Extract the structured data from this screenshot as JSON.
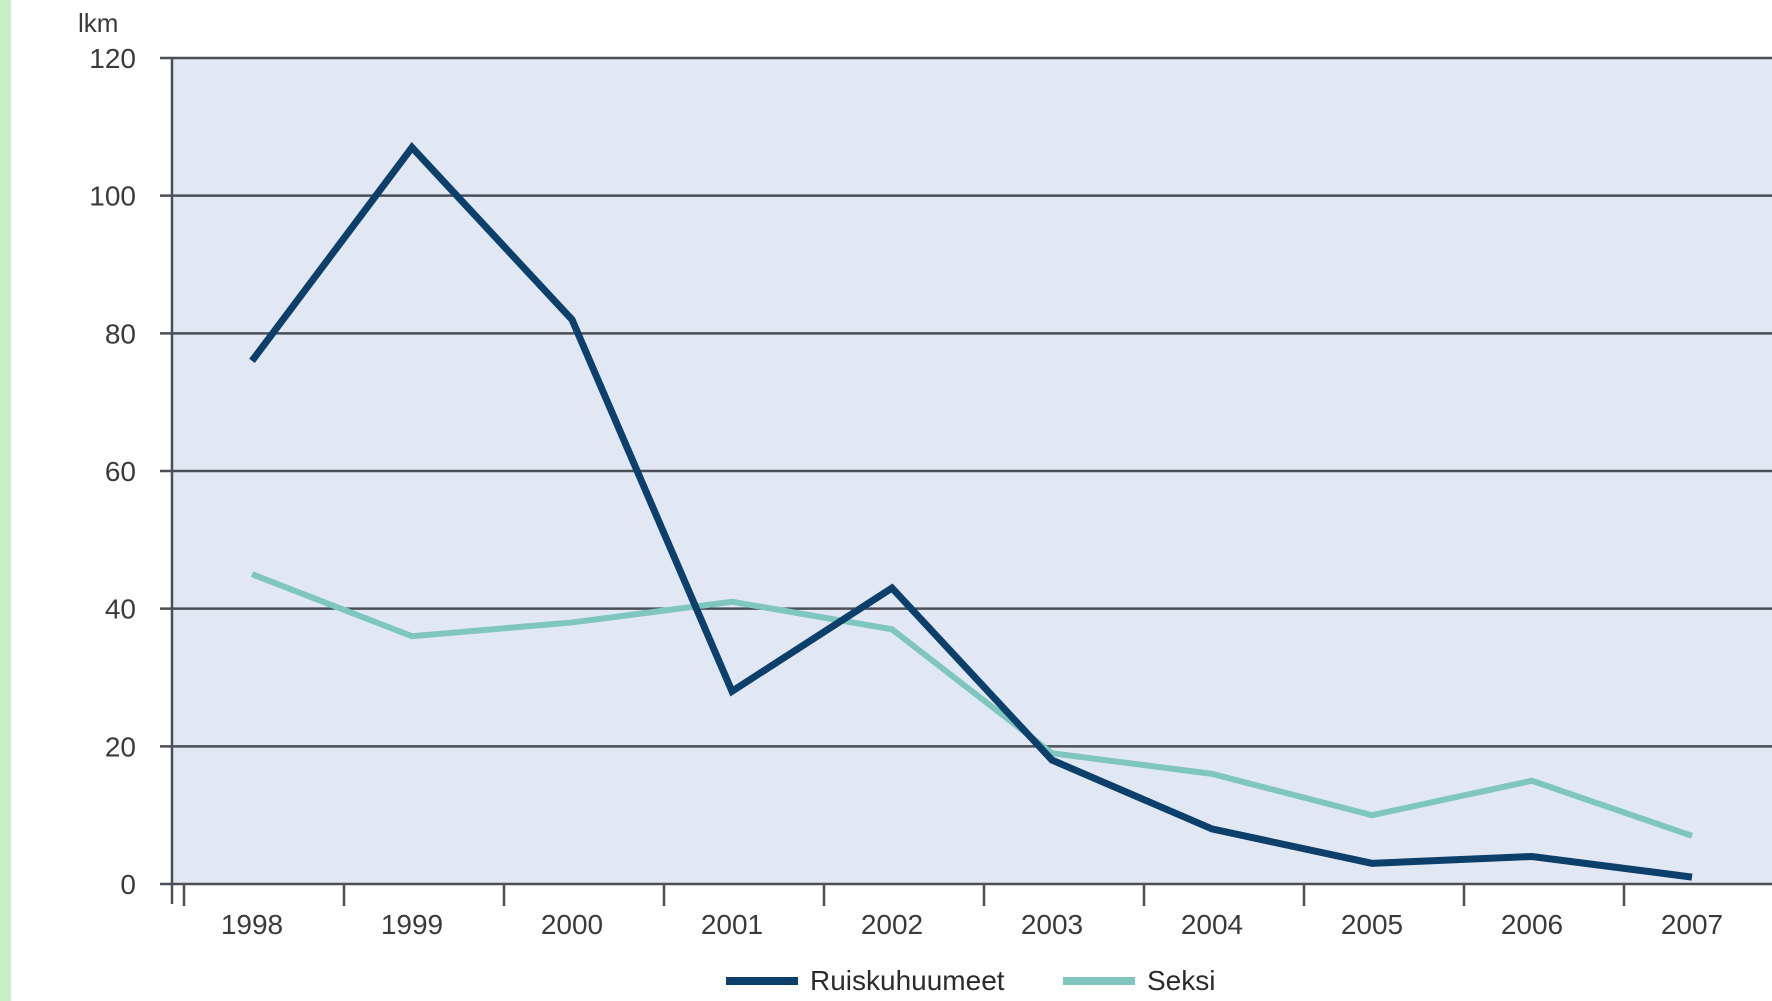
{
  "chart_data": {
    "type": "line",
    "ylabel": "lkm",
    "ylim": [
      0,
      120
    ],
    "yticks": [
      0,
      20,
      40,
      60,
      80,
      100,
      120
    ],
    "x": [
      "1998",
      "1999",
      "2000",
      "2001",
      "2002",
      "2003",
      "2004",
      "2005",
      "2006",
      "2007"
    ],
    "series": [
      {
        "name": "Ruiskuhuumeet",
        "color": "#0d3f6b",
        "values": [
          76,
          107,
          82,
          28,
          43,
          18,
          8,
          3,
          4,
          1
        ]
      },
      {
        "name": "Seksi",
        "color": "#7ec6be",
        "values": [
          45,
          36,
          38,
          41,
          37,
          19,
          16,
          10,
          15,
          7
        ]
      }
    ],
    "grid": true,
    "legend_position": "bottom-center",
    "plot_background": "#e1e8f4",
    "grid_color": "#4a4f57"
  }
}
